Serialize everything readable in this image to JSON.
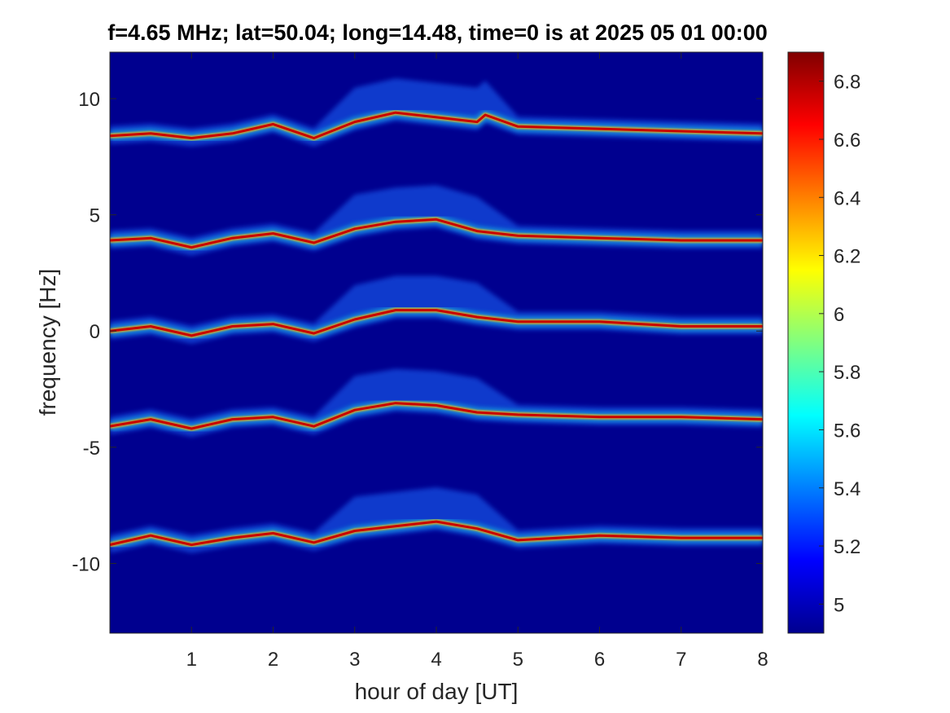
{
  "chart_data": {
    "type": "heatmap",
    "title": "f=4.65 MHz;  lat=50.04; long=14.48, time=0 is at 2025 05 01 00:00",
    "xlabel": "hour of day [UT]",
    "ylabel": "frequency [Hz]",
    "xlim": [
      0,
      8
    ],
    "ylim": [
      -13,
      12
    ],
    "x_ticks": [
      1,
      2,
      3,
      4,
      5,
      6,
      7,
      8
    ],
    "y_ticks": [
      -10,
      -5,
      0,
      5,
      10
    ],
    "colorbar": {
      "range": [
        4.9,
        6.9
      ],
      "ticks": [
        5,
        5.2,
        5.4,
        5.6,
        5.8,
        6,
        6.2,
        6.4,
        6.6,
        6.8
      ],
      "colormap": "jet"
    },
    "background_color": "#00008F",
    "traces": [
      {
        "offset": 8.4,
        "hours": [
          0,
          0.5,
          1,
          1.5,
          2,
          2.5,
          3,
          3.5,
          4,
          4.5,
          4.6,
          5,
          6,
          7,
          8
        ],
        "freq_hz": [
          8.4,
          8.5,
          8.3,
          8.5,
          8.9,
          8.3,
          9.0,
          9.4,
          9.2,
          9.0,
          9.3,
          8.8,
          8.7,
          8.6,
          8.5
        ]
      },
      {
        "offset": 3.9,
        "hours": [
          0,
          0.5,
          1,
          1.5,
          2,
          2.5,
          3,
          3.5,
          4,
          4.5,
          5,
          6,
          7,
          8
        ],
        "freq_hz": [
          3.9,
          4.0,
          3.6,
          4.0,
          4.2,
          3.8,
          4.4,
          4.7,
          4.8,
          4.3,
          4.1,
          4.0,
          3.9,
          3.9
        ]
      },
      {
        "offset": 0.0,
        "hours": [
          0,
          0.5,
          1,
          1.5,
          2,
          2.5,
          3,
          3.5,
          4,
          4.5,
          5,
          6,
          7,
          8
        ],
        "freq_hz": [
          0.0,
          0.2,
          -0.2,
          0.2,
          0.3,
          -0.1,
          0.5,
          0.9,
          0.9,
          0.6,
          0.4,
          0.4,
          0.2,
          0.2
        ]
      },
      {
        "offset": -4.1,
        "hours": [
          0,
          0.5,
          1,
          1.5,
          2,
          2.5,
          3,
          3.5,
          4,
          4.5,
          5,
          6,
          7,
          8
        ],
        "freq_hz": [
          -4.1,
          -3.8,
          -4.2,
          -3.8,
          -3.7,
          -4.1,
          -3.4,
          -3.1,
          -3.2,
          -3.5,
          -3.6,
          -3.7,
          -3.7,
          -3.8
        ]
      },
      {
        "offset": -9.2,
        "hours": [
          0,
          0.5,
          1,
          1.5,
          2,
          2.5,
          3,
          3.5,
          4,
          4.5,
          5,
          6,
          7,
          8
        ],
        "freq_hz": [
          -9.2,
          -8.8,
          -9.2,
          -8.9,
          -8.7,
          -9.1,
          -8.6,
          -8.4,
          -8.2,
          -8.5,
          -9.0,
          -8.8,
          -8.9,
          -8.9
        ]
      }
    ]
  }
}
